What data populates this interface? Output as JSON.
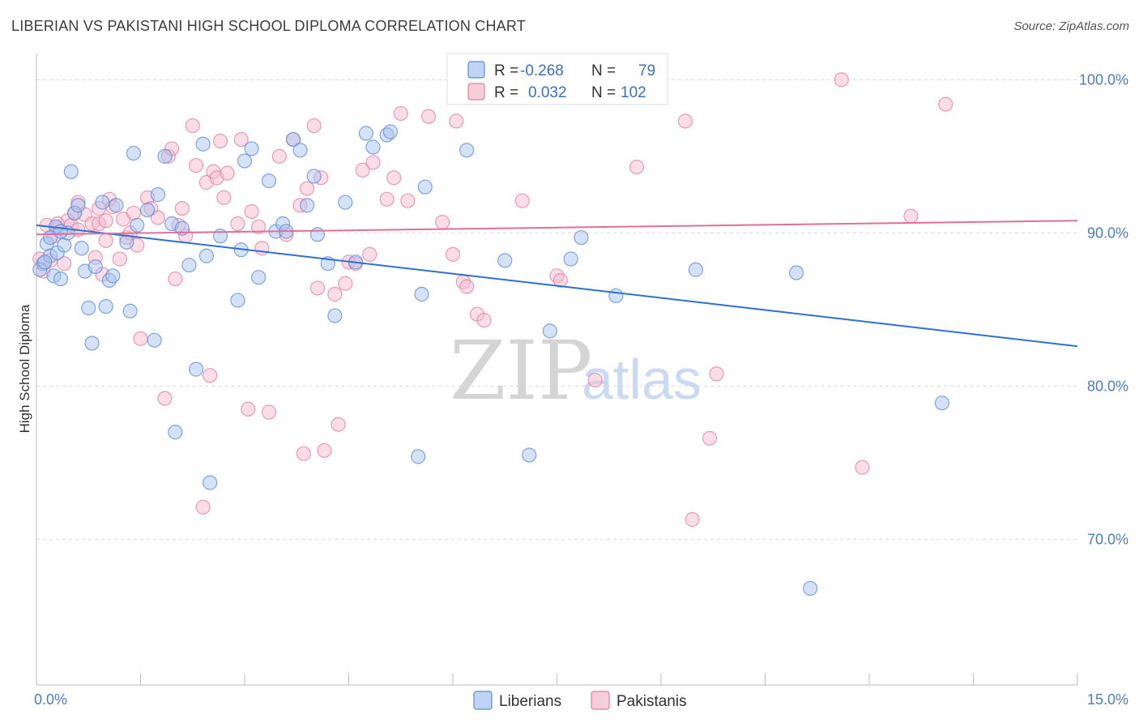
{
  "title": "LIBERIAN VS PAKISTANI HIGH SCHOOL DIPLOMA CORRELATION CHART",
  "source": "Source: ZipAtlas.com",
  "watermark": {
    "zip": "ZIP",
    "atlas": "atlas"
  },
  "colors": {
    "liberian_fill": "#a9c4ee",
    "liberian_stroke": "#5b8ad6",
    "liberian_line": "#2f6fd0",
    "pakistani_fill": "#f6bccd",
    "pakistani_stroke": "#e07fa0",
    "pakistani_line": "#e0709a",
    "grid": "#d9d9d9",
    "axis_text": "#4a7cc9"
  },
  "legend": {
    "rows": [
      {
        "r_label": "R =",
        "r_value": "-0.268",
        "n_label": "N =",
        "n_value": "79"
      },
      {
        "r_label": "R =",
        "r_value": "0.032",
        "n_label": "N =",
        "n_value": "102"
      }
    ]
  },
  "bottom_legend": [
    "Liberians",
    "Pakistanis"
  ],
  "chart_data": {
    "type": "scatter",
    "xlabel": "",
    "ylabel": "High School Diploma",
    "xlim": [
      0,
      15
    ],
    "ylim": [
      60.5,
      101.5
    ],
    "x_tick_labels": [
      "0.0%",
      "15.0%"
    ],
    "y_ticks": [
      70,
      80,
      90,
      100
    ],
    "y_tick_labels": [
      "70.0%",
      "80.0%",
      "90.0%",
      "100.0%"
    ],
    "grid": true,
    "series": [
      {
        "name": "Liberians",
        "trend": {
          "x": [
            0,
            15
          ],
          "y": [
            90.5,
            82.6
          ]
        },
        "points": [
          [
            0.1,
            88.0
          ],
          [
            0.15,
            89.3
          ],
          [
            0.2,
            88.5
          ],
          [
            0.25,
            87.2
          ],
          [
            0.28,
            90.4
          ],
          [
            0.3,
            88.7
          ],
          [
            0.35,
            87.0
          ],
          [
            0.4,
            89.2
          ],
          [
            0.45,
            90.0
          ],
          [
            0.5,
            94.0
          ],
          [
            0.55,
            91.3
          ],
          [
            0.6,
            91.8
          ],
          [
            0.65,
            89.0
          ],
          [
            0.7,
            87.5
          ],
          [
            0.75,
            85.1
          ],
          [
            0.8,
            82.8
          ],
          [
            0.85,
            87.8
          ],
          [
            0.95,
            92.0
          ],
          [
            1.0,
            85.2
          ],
          [
            1.05,
            86.9
          ],
          [
            1.1,
            87.2
          ],
          [
            1.15,
            91.8
          ],
          [
            1.3,
            89.4
          ],
          [
            1.35,
            84.9
          ],
          [
            1.4,
            95.2
          ],
          [
            1.45,
            90.5
          ],
          [
            1.6,
            91.5
          ],
          [
            1.7,
            83.0
          ],
          [
            1.75,
            92.5
          ],
          [
            1.85,
            95.0
          ],
          [
            1.95,
            90.6
          ],
          [
            2.0,
            77.0
          ],
          [
            2.1,
            90.3
          ],
          [
            2.2,
            87.9
          ],
          [
            2.3,
            81.1
          ],
          [
            2.4,
            95.8
          ],
          [
            2.45,
            88.5
          ],
          [
            2.5,
            73.7
          ],
          [
            2.65,
            89.8
          ],
          [
            2.9,
            85.6
          ],
          [
            2.95,
            88.9
          ],
          [
            3.0,
            94.7
          ],
          [
            3.1,
            95.5
          ],
          [
            3.2,
            87.1
          ],
          [
            3.35,
            93.4
          ],
          [
            3.45,
            90.1
          ],
          [
            3.55,
            90.6
          ],
          [
            3.6,
            90.1
          ],
          [
            3.7,
            96.1
          ],
          [
            3.8,
            95.4
          ],
          [
            3.9,
            91.8
          ],
          [
            4.0,
            93.7
          ],
          [
            4.05,
            89.9
          ],
          [
            4.2,
            88.0
          ],
          [
            4.3,
            84.6
          ],
          [
            4.45,
            92.0
          ],
          [
            4.6,
            88.1
          ],
          [
            4.75,
            96.5
          ],
          [
            4.85,
            95.6
          ],
          [
            5.05,
            96.4
          ],
          [
            5.1,
            96.6
          ],
          [
            5.5,
            75.4
          ],
          [
            5.55,
            86.0
          ],
          [
            5.6,
            93.0
          ],
          [
            6.2,
            95.4
          ],
          [
            6.75,
            88.2
          ],
          [
            7.1,
            75.5
          ],
          [
            7.4,
            83.6
          ],
          [
            7.7,
            88.3
          ],
          [
            7.85,
            89.7
          ],
          [
            8.35,
            85.9
          ],
          [
            9.5,
            87.6
          ],
          [
            10.95,
            87.4
          ],
          [
            11.15,
            66.8
          ],
          [
            13.05,
            78.9
          ],
          [
            0.05,
            87.6
          ],
          [
            0.12,
            88.1
          ],
          [
            0.2,
            89.7
          ],
          [
            0.35,
            90.1
          ]
        ]
      },
      {
        "name": "Pakistanis",
        "trend": {
          "x": [
            0,
            15
          ],
          "y": [
            89.9,
            90.8
          ]
        },
        "points": [
          [
            0.05,
            88.3
          ],
          [
            0.1,
            87.5
          ],
          [
            0.15,
            90.5
          ],
          [
            0.2,
            88.2
          ],
          [
            0.3,
            90.3
          ],
          [
            0.4,
            88.0
          ],
          [
            0.45,
            90.8
          ],
          [
            0.5,
            90.5
          ],
          [
            0.55,
            91.3
          ],
          [
            0.6,
            92.0
          ],
          [
            0.7,
            91.2
          ],
          [
            0.8,
            90.6
          ],
          [
            0.85,
            88.4
          ],
          [
            0.9,
            90.6
          ],
          [
            0.95,
            87.3
          ],
          [
            1.0,
            90.8
          ],
          [
            1.05,
            92.2
          ],
          [
            1.1,
            91.7
          ],
          [
            1.2,
            88.3
          ],
          [
            1.25,
            90.9
          ],
          [
            1.3,
            89.7
          ],
          [
            1.4,
            91.3
          ],
          [
            1.45,
            89.2
          ],
          [
            1.5,
            83.1
          ],
          [
            1.6,
            92.3
          ],
          [
            1.65,
            91.6
          ],
          [
            1.75,
            91.0
          ],
          [
            1.85,
            79.2
          ],
          [
            1.9,
            95.0
          ],
          [
            1.95,
            95.5
          ],
          [
            2.0,
            87.0
          ],
          [
            2.05,
            90.5
          ],
          [
            2.1,
            91.6
          ],
          [
            2.15,
            89.8
          ],
          [
            2.25,
            97.0
          ],
          [
            2.3,
            94.4
          ],
          [
            2.4,
            72.1
          ],
          [
            2.45,
            93.3
          ],
          [
            2.5,
            80.7
          ],
          [
            2.55,
            94.0
          ],
          [
            2.6,
            93.6
          ],
          [
            2.65,
            96.0
          ],
          [
            2.7,
            92.3
          ],
          [
            2.75,
            93.9
          ],
          [
            2.9,
            90.6
          ],
          [
            2.95,
            96.1
          ],
          [
            3.05,
            78.5
          ],
          [
            3.1,
            91.4
          ],
          [
            3.2,
            90.4
          ],
          [
            3.25,
            89.0
          ],
          [
            3.35,
            78.3
          ],
          [
            3.5,
            95.0
          ],
          [
            3.6,
            89.9
          ],
          [
            3.7,
            96.1
          ],
          [
            3.8,
            91.8
          ],
          [
            3.85,
            75.6
          ],
          [
            3.9,
            92.9
          ],
          [
            4.0,
            97.0
          ],
          [
            4.05,
            86.4
          ],
          [
            4.1,
            93.6
          ],
          [
            4.15,
            75.8
          ],
          [
            4.3,
            86.0
          ],
          [
            4.35,
            77.5
          ],
          [
            4.45,
            86.7
          ],
          [
            4.5,
            88.1
          ],
          [
            4.6,
            88.0
          ],
          [
            4.7,
            94.1
          ],
          [
            4.8,
            88.6
          ],
          [
            4.85,
            94.6
          ],
          [
            5.05,
            92.2
          ],
          [
            5.15,
            93.6
          ],
          [
            5.25,
            97.8
          ],
          [
            5.35,
            92.1
          ],
          [
            5.65,
            97.6
          ],
          [
            5.85,
            90.7
          ],
          [
            6.0,
            88.6
          ],
          [
            6.05,
            97.3
          ],
          [
            6.15,
            86.8
          ],
          [
            6.2,
            86.5
          ],
          [
            6.35,
            84.7
          ],
          [
            6.45,
            84.3
          ],
          [
            7.0,
            92.1
          ],
          [
            7.5,
            87.2
          ],
          [
            7.55,
            86.9
          ],
          [
            8.05,
            80.4
          ],
          [
            8.3,
            99.5
          ],
          [
            8.45,
            100.0
          ],
          [
            8.65,
            94.3
          ],
          [
            9.35,
            97.3
          ],
          [
            9.45,
            71.3
          ],
          [
            9.7,
            76.6
          ],
          [
            9.8,
            80.8
          ],
          [
            11.6,
            100.0
          ],
          [
            11.9,
            74.7
          ],
          [
            12.6,
            91.1
          ],
          [
            13.1,
            98.4
          ],
          [
            0.3,
            90.6
          ],
          [
            0.6,
            90.2
          ],
          [
            1.0,
            89.5
          ],
          [
            1.35,
            90.0
          ],
          [
            0.9,
            91.6
          ],
          [
            0.25,
            89.8
          ]
        ]
      }
    ]
  }
}
